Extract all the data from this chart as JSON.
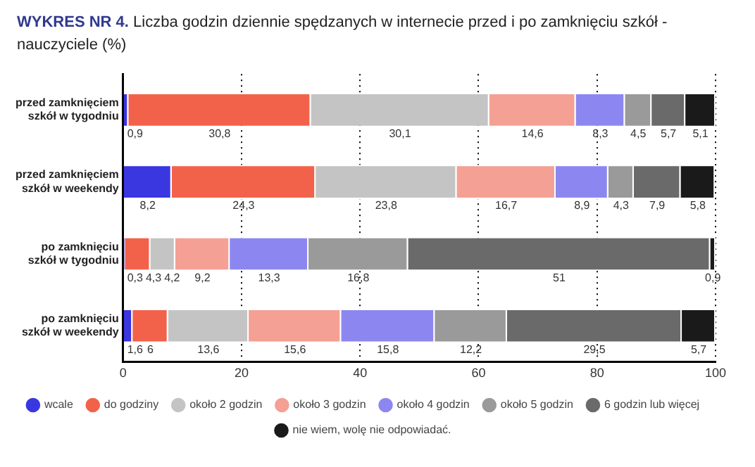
{
  "chart_data": {
    "type": "bar",
    "orientation": "horizontal",
    "stacked": true,
    "title": "WYKRES NR 4.",
    "subtitle": "Liczba godzin dziennie spędzanych w internecie przed i po zamknięciu szkół - nauczyciele (%)",
    "categories": [
      "przed zamknięciem szkół w tygodniu",
      "przed zamknięciem szkół w weekendy",
      "po zamknięciu szkół w tygodniu",
      "po zamknięciu szkół w weekendy"
    ],
    "series": [
      {
        "name": "wcale",
        "color": "#3a36e0",
        "values": [
          0.9,
          8.2,
          0.3,
          1.6
        ],
        "value_labels": [
          "0,9",
          "8,2",
          "0,3",
          "1,6"
        ]
      },
      {
        "name": "do godziny",
        "color": "#f2624a",
        "values": [
          30.8,
          24.3,
          4.3,
          6
        ],
        "value_labels": [
          "30,8",
          "24,3",
          "4,3",
          "6"
        ]
      },
      {
        "name": "około 2 godzin",
        "color": "#c4c4c4",
        "values": [
          30.1,
          23.8,
          4.2,
          13.6
        ],
        "value_labels": [
          "30,1",
          "23,8",
          "4,2",
          "13,6"
        ]
      },
      {
        "name": "około 3 godzin",
        "color": "#f4a094",
        "values": [
          14.6,
          16.7,
          9.2,
          15.6
        ],
        "value_labels": [
          "14,6",
          "16,7",
          "9,2",
          "15,6"
        ]
      },
      {
        "name": "około 4 godzin",
        "color": "#8c87f0",
        "values": [
          8.3,
          8.9,
          13.3,
          15.8
        ],
        "value_labels": [
          "8,3",
          "8,9",
          "13,3",
          "15,8"
        ]
      },
      {
        "name": "około 5 godzin",
        "color": "#9a9a9a",
        "values": [
          4.5,
          4.3,
          16.8,
          12.2
        ],
        "value_labels": [
          "4,5",
          "4,3",
          "16,8",
          "12,2"
        ]
      },
      {
        "name": "6 godzin lub więcej",
        "color": "#6a6a6a",
        "values": [
          5.7,
          7.9,
          51,
          29.5
        ],
        "value_labels": [
          "5,7",
          "7,9",
          "51",
          "29,5"
        ]
      },
      {
        "name": "nie wiem, wolę nie odpowiadać.",
        "color": "#1a1a1a",
        "values": [
          5.1,
          5.8,
          0.9,
          5.7
        ],
        "value_labels": [
          "5,1",
          "5,8",
          "0,9",
          "5,7"
        ]
      }
    ],
    "xlim": [
      0,
      100
    ],
    "xticks": [
      0,
      20,
      40,
      60,
      80,
      100
    ],
    "grid": "x",
    "legend": "bottom"
  }
}
